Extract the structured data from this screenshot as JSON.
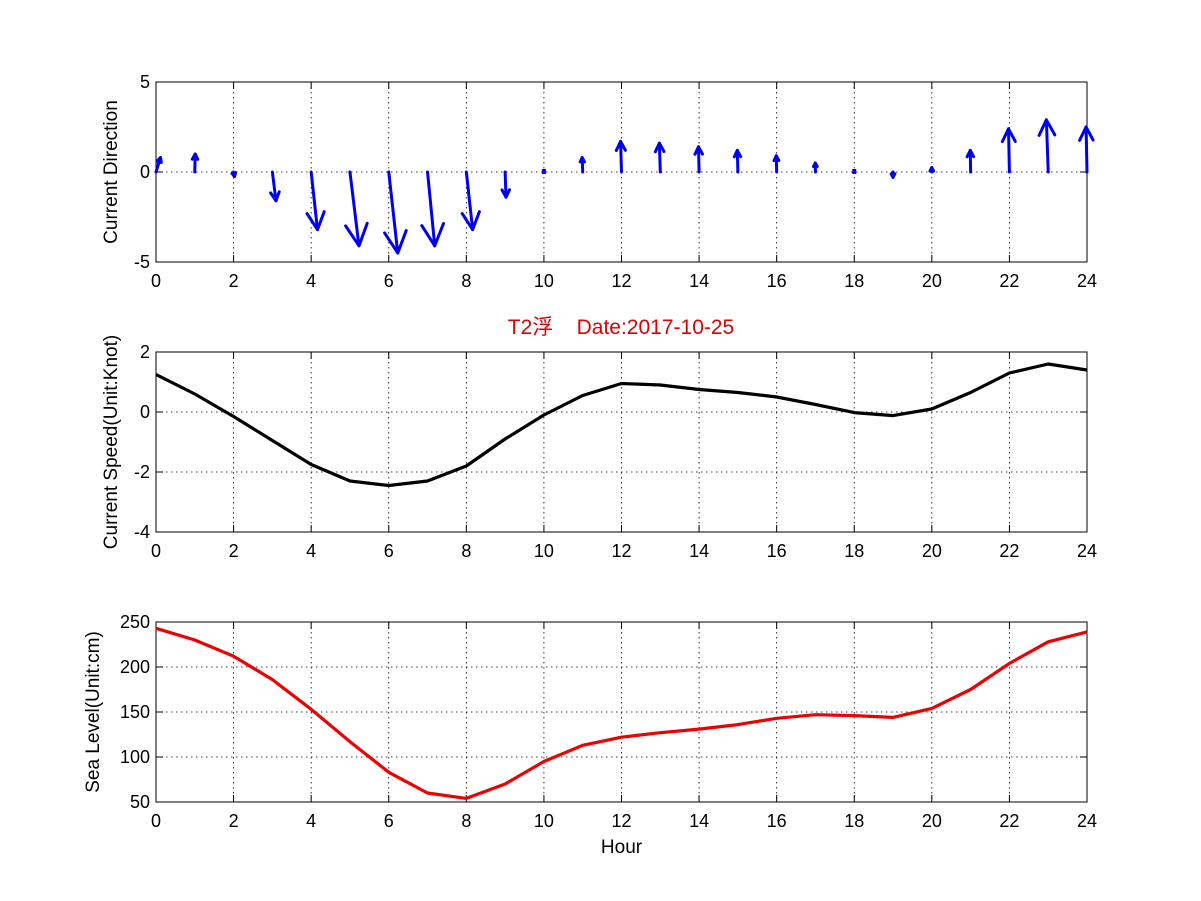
{
  "chart_data": [
    {
      "type": "quiver",
      "title": "",
      "xlabel": "",
      "ylabel": "Current Direction",
      "xlim": [
        0,
        24
      ],
      "ylim": [
        -5,
        5
      ],
      "xticks": [
        0,
        2,
        4,
        6,
        8,
        10,
        12,
        14,
        16,
        18,
        20,
        22,
        24
      ],
      "yticks": [
        -5,
        0,
        5
      ],
      "grid": true,
      "color": "#0000ee",
      "x": [
        0,
        1,
        2,
        3,
        4,
        5,
        6,
        7,
        8,
        9,
        10,
        11,
        12,
        13,
        14,
        15,
        16,
        17,
        18,
        19,
        20,
        21,
        22,
        23,
        24
      ],
      "u": [
        0.25,
        0.02,
        0.05,
        0.2,
        0.35,
        0.5,
        0.5,
        0.4,
        0.35,
        0.05,
        -0.02,
        -0.03,
        -0.05,
        -0.05,
        -0.03,
        -0.03,
        -0.02,
        -0.01,
        0.0,
        0.0,
        0.0,
        -0.02,
        -0.05,
        -0.1,
        -0.05
      ],
      "v": [
        0.8,
        1.0,
        -0.25,
        -1.6,
        -3.2,
        -4.1,
        -4.5,
        -4.1,
        -3.2,
        -1.4,
        -0.15,
        0.8,
        1.7,
        1.6,
        1.4,
        1.2,
        0.9,
        0.5,
        0.0,
        -0.3,
        0.25,
        1.2,
        2.4,
        2.9,
        2.5
      ]
    },
    {
      "type": "line",
      "title": "T2浮    Date:2017-10-25",
      "xlabel": "",
      "ylabel": "Current Speed(Unit:Knot)",
      "xlim": [
        0,
        24
      ],
      "ylim": [
        -4,
        2
      ],
      "xticks": [
        0,
        2,
        4,
        6,
        8,
        10,
        12,
        14,
        16,
        18,
        20,
        22,
        24
      ],
      "yticks": [
        -4,
        -2,
        0,
        2
      ],
      "grid": true,
      "color": "#000000",
      "x": [
        0,
        1,
        2,
        3,
        4,
        5,
        6,
        7,
        8,
        9,
        10,
        11,
        12,
        13,
        14,
        15,
        16,
        17,
        18,
        19,
        20,
        21,
        22,
        23,
        24
      ],
      "y": [
        1.25,
        0.6,
        -0.15,
        -0.95,
        -1.75,
        -2.3,
        -2.45,
        -2.3,
        -1.8,
        -0.9,
        -0.1,
        0.55,
        0.95,
        0.9,
        0.75,
        0.65,
        0.5,
        0.25,
        -0.02,
        -0.12,
        0.1,
        0.65,
        1.3,
        1.6,
        1.4
      ]
    },
    {
      "type": "line",
      "title": "",
      "xlabel": "Hour",
      "ylabel": "Sea Level(Unit:cm)",
      "xlim": [
        0,
        24
      ],
      "ylim": [
        50,
        250
      ],
      "xticks": [
        0,
        2,
        4,
        6,
        8,
        10,
        12,
        14,
        16,
        18,
        20,
        22,
        24
      ],
      "yticks": [
        50,
        100,
        150,
        200,
        250
      ],
      "grid": true,
      "color": "#ee0000",
      "x": [
        0,
        1,
        2,
        3,
        4,
        5,
        6,
        7,
        8,
        9,
        10,
        11,
        12,
        13,
        14,
        15,
        16,
        17,
        18,
        19,
        20,
        21,
        22,
        23,
        24
      ],
      "y": [
        243,
        230,
        212,
        186,
        153,
        117,
        83,
        60,
        54,
        70,
        95,
        113,
        122,
        127,
        131,
        136,
        143,
        147,
        146,
        144,
        154,
        175,
        204,
        228,
        239
      ]
    }
  ]
}
